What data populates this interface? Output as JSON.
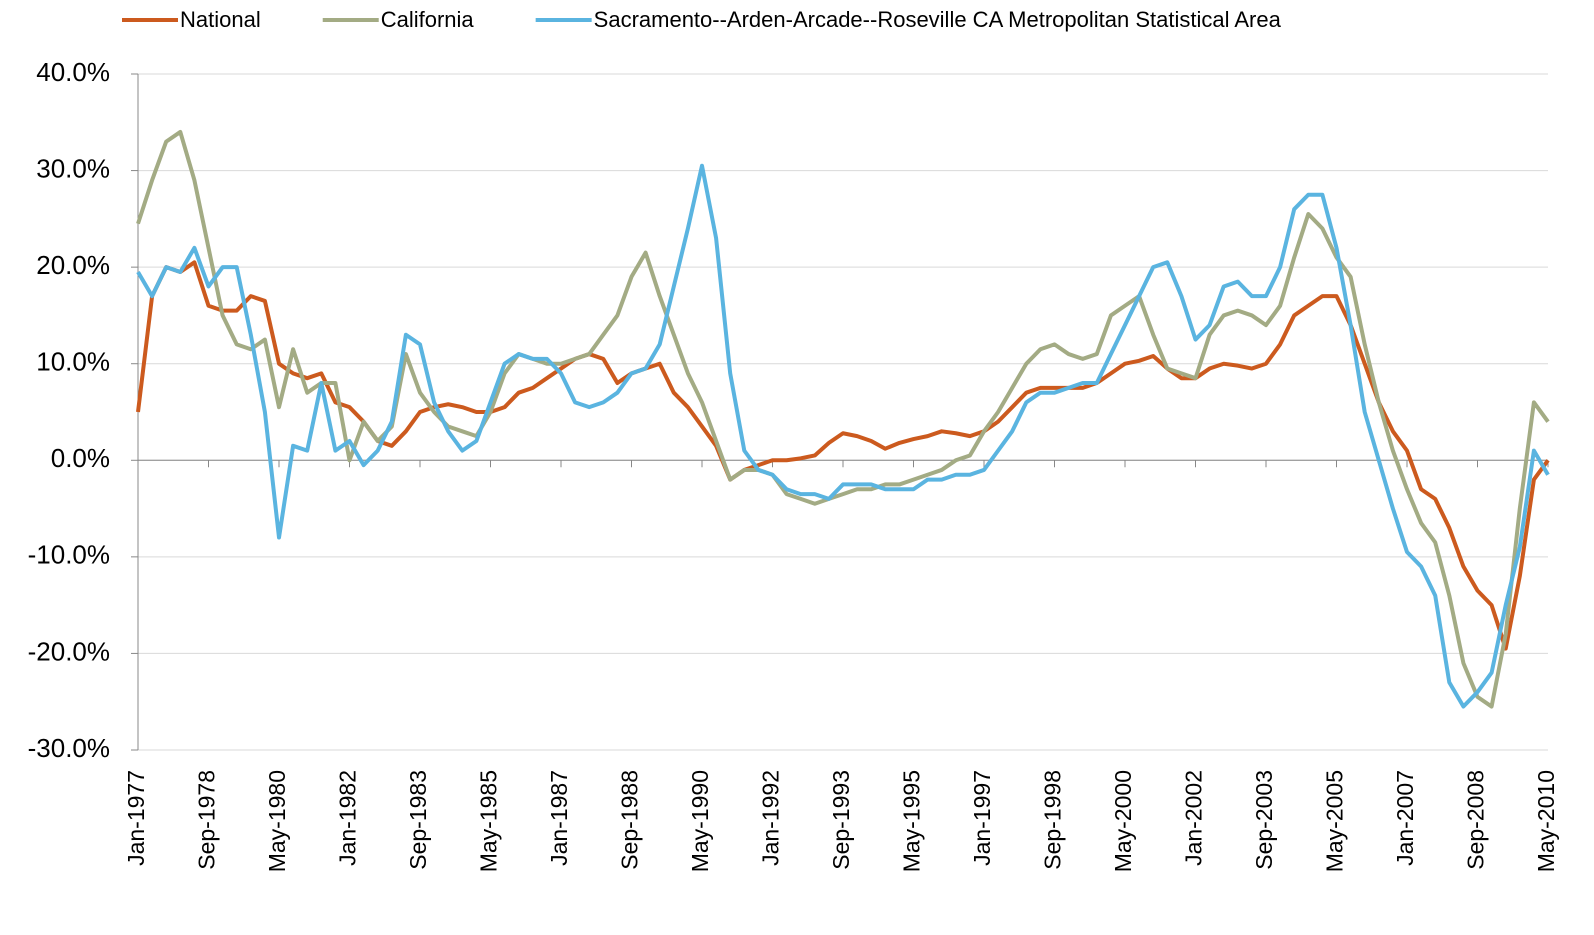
{
  "chart_data": {
    "type": "line",
    "categories": [
      "Jan-1977",
      null,
      null,
      null,
      null,
      "Sep-1978",
      null,
      null,
      null,
      null,
      "May-1980",
      null,
      null,
      null,
      null,
      "Jan-1982",
      null,
      null,
      null,
      null,
      "Sep-1983",
      null,
      null,
      null,
      null,
      "May-1985",
      null,
      null,
      null,
      null,
      "Jan-1987",
      null,
      null,
      null,
      null,
      "Sep-1988",
      null,
      null,
      null,
      null,
      "May-1990",
      null,
      null,
      null,
      null,
      "Jan-1992",
      null,
      null,
      null,
      null,
      "Sep-1993",
      null,
      null,
      null,
      null,
      "May-1995",
      null,
      null,
      null,
      null,
      "Jan-1997",
      null,
      null,
      null,
      null,
      "Sep-1998",
      null,
      null,
      null,
      null,
      "May-2000",
      null,
      null,
      null,
      null,
      "Jan-2002",
      null,
      null,
      null,
      null,
      "Sep-2003",
      null,
      null,
      null,
      null,
      "May-2005",
      null,
      null,
      null,
      null,
      "Jan-2007",
      null,
      null,
      null,
      null,
      "Sep-2008",
      null,
      null,
      null,
      null,
      "May-2010"
    ],
    "series": [
      {
        "name": "National",
        "color": "#cc5a1e",
        "values": [
          5,
          17,
          20,
          19.5,
          20.5,
          16,
          15.5,
          15.5,
          17,
          16.5,
          10,
          9,
          8.5,
          9,
          6,
          5.5,
          4,
          2,
          1.5,
          3,
          5,
          5.5,
          5.8,
          5.5,
          5,
          5,
          5.5,
          7,
          7.5,
          8.5,
          9.5,
          10.5,
          11,
          10.5,
          8,
          9,
          9.5,
          10,
          7,
          5.5,
          3.5,
          1.5,
          -2,
          -1,
          -0.5,
          0,
          0,
          0.2,
          0.5,
          1.8,
          2.8,
          2.5,
          2,
          1.2,
          1.8,
          2.2,
          2.5,
          3,
          2.8,
          2.5,
          3,
          4,
          5.5,
          7,
          7.5,
          7.5,
          7.5,
          7.5,
          8,
          9,
          10,
          10.3,
          10.8,
          9.5,
          8.5,
          8.5,
          9.5,
          10,
          9.8,
          9.5,
          10,
          12,
          15,
          16,
          17,
          17,
          14,
          10,
          6,
          3,
          1,
          -3,
          -4,
          -7,
          -11,
          -13.5,
          -15,
          -19.5,
          -12,
          -2,
          0
        ]
      },
      {
        "name": "California",
        "color": "#a3ab84",
        "values": [
          24.5,
          29,
          33,
          34,
          29,
          22,
          15,
          12,
          11.5,
          12.5,
          5.5,
          11.5,
          7,
          8,
          8,
          0,
          4,
          2,
          3.5,
          11,
          7,
          5,
          3.5,
          3,
          2.5,
          5,
          9,
          11,
          10.5,
          10,
          10,
          10.5,
          11,
          13,
          15,
          19,
          21.5,
          17,
          13,
          9,
          6,
          2,
          -2,
          -1,
          -1,
          -1.5,
          -3.5,
          -4,
          -4.5,
          -4,
          -3.5,
          -3,
          -3,
          -2.5,
          -2.5,
          -2,
          -1.5,
          -1,
          0,
          0.5,
          3,
          5,
          7.5,
          10,
          11.5,
          12,
          11,
          10.5,
          11,
          15,
          16,
          17,
          13,
          9.5,
          9,
          8.5,
          13,
          15,
          15.5,
          15,
          14,
          16,
          21,
          25.5,
          24,
          21,
          19,
          12,
          6,
          1,
          -3,
          -6.5,
          -8.5,
          -14,
          -21,
          -24.5,
          -25.5,
          -18,
          -5,
          6,
          4
        ]
      },
      {
        "name": "Sacramento--Arden-Arcade--Roseville CA Metropolitan Statistical Area",
        "color": "#5ab4e0",
        "values": [
          19.5,
          17,
          20,
          19.5,
          22,
          18,
          20,
          20,
          13,
          5,
          -8,
          1.5,
          1,
          8,
          1,
          2,
          -0.5,
          1,
          4,
          13,
          12,
          6,
          3,
          1,
          2,
          6,
          10,
          11,
          10.5,
          10.5,
          9,
          6,
          5.5,
          6,
          7,
          9,
          9.5,
          12,
          18,
          24,
          30.5,
          23,
          9,
          1,
          -1,
          -1.5,
          -3,
          -3.5,
          -3.5,
          -4,
          -2.5,
          -2.5,
          -2.5,
          -3,
          -3,
          -3,
          -2,
          -2,
          -1.5,
          -1.5,
          -1,
          1,
          3,
          6,
          7,
          7,
          7.5,
          8,
          8,
          11,
          14,
          17,
          20,
          20.5,
          17,
          12.5,
          14,
          18,
          18.5,
          17,
          17,
          20,
          26,
          27.5,
          27.5,
          22,
          14,
          5,
          0,
          -5,
          -9.5,
          -11,
          -14,
          -23,
          -25.5,
          -24,
          -22,
          -15,
          -9,
          1,
          -1.5
        ]
      }
    ],
    "ylim": [
      -30,
      40
    ],
    "yticks": [
      {
        "value": -30,
        "label": "-30.0%"
      },
      {
        "value": -20,
        "label": "-20.0%"
      },
      {
        "value": -10,
        "label": "-10.0%"
      },
      {
        "value": 0,
        "label": "0.0%"
      },
      {
        "value": 10,
        "label": "10.0%"
      },
      {
        "value": 20,
        "label": "20.0%"
      },
      {
        "value": 30,
        "label": "30.0%"
      },
      {
        "value": 40,
        "label": "40.0%"
      }
    ],
    "grid": true,
    "legend": "top"
  }
}
